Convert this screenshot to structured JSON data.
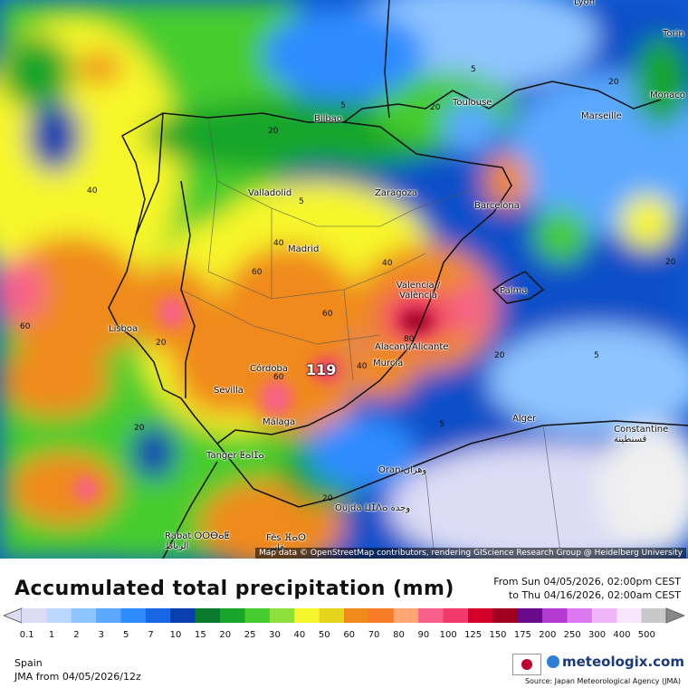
{
  "map": {
    "attribution": "Map data © OpenStreetMap contributors, rendering GIScience Research Group @ Heidelberg University",
    "max_value_label": "119",
    "cities": [
      {
        "name": "Lyon"
      },
      {
        "name": "Torin"
      },
      {
        "name": "Monaco"
      },
      {
        "name": "Marseille"
      },
      {
        "name": "Toulouse"
      },
      {
        "name": "Bilbao"
      },
      {
        "name": "Valladolid"
      },
      {
        "name": "Zaragoza"
      },
      {
        "name": "Barcelona"
      },
      {
        "name": "Madrid"
      },
      {
        "name": "Palma"
      },
      {
        "name": "Valencia / València"
      },
      {
        "name": "Lisboa"
      },
      {
        "name": "Alacant/Alicante"
      },
      {
        "name": "Murcia"
      },
      {
        "name": "Córdoba"
      },
      {
        "name": "Sevilla"
      },
      {
        "name": "Málaga"
      },
      {
        "name": "Alger"
      },
      {
        "name": "Constantine قسنطينة"
      },
      {
        "name": "Tanger ⵟⴰⵏⵊⴰ"
      },
      {
        "name": "Oran وهران"
      },
      {
        "name": "Oujda ⵡⵊⴷⴰ وجدة"
      },
      {
        "name": "Rabat ⵔⵔⴱⴰⵟ الرباط"
      },
      {
        "name": "Fès ⴼⴰⵙ فاس"
      }
    ],
    "contour_labels": [
      "5",
      "5",
      "5",
      "5",
      "5",
      "20",
      "20",
      "20",
      "20",
      "20",
      "20",
      "20",
      "20",
      "40",
      "40",
      "40",
      "40",
      "60",
      "60",
      "60",
      "60",
      "80"
    ]
  },
  "legend": {
    "title": "Accumulated total precipitation (mm)",
    "period_from": "From Sun 04/05/2026, 02:00pm CEST",
    "period_to": "to Thu 04/16/2026, 02:00am CEST",
    "units": "mm",
    "ticks": [
      "0.1",
      "1",
      "2",
      "3",
      "5",
      "7",
      "10",
      "15",
      "20",
      "25",
      "30",
      "40",
      "50",
      "60",
      "70",
      "80",
      "90",
      "100",
      "125",
      "150",
      "175",
      "200",
      "250",
      "300",
      "400",
      "500"
    ],
    "colors": [
      "#dcdcf5",
      "#bcd8ff",
      "#8ec4ff",
      "#5aa8ff",
      "#2f8cff",
      "#1666e6",
      "#0a3fb0",
      "#0b7a2c",
      "#17a52c",
      "#46cc2e",
      "#8fe03a",
      "#f6f62c",
      "#e6d41c",
      "#f08a1a",
      "#f77a24",
      "#ffa673",
      "#f7608a",
      "#f03a6a",
      "#d4002a",
      "#a00020",
      "#6a0a8a",
      "#b43ad4",
      "#dc78f0",
      "#f0b4f8",
      "#f8e6fc",
      "#c8c8c8"
    ]
  },
  "footer": {
    "region": "Spain",
    "model": "JMA from  04/05/2026/12z",
    "brand": "meteologix.com",
    "source": "Source: Japan Meteorological Agency (JMA)"
  }
}
